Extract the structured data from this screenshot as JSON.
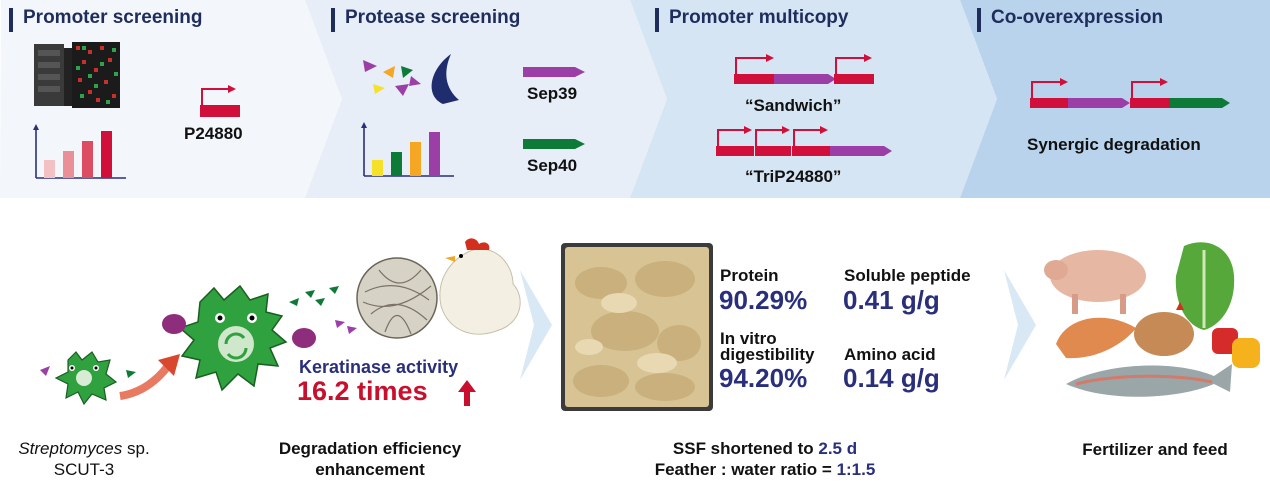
{
  "steps": [
    {
      "title": "Promoter screening"
    },
    {
      "title": "Protease screening"
    },
    {
      "title": "Promoter multicopy"
    },
    {
      "title": "Co-overexpression"
    }
  ],
  "promoter": {
    "name": "P24880"
  },
  "proteases": {
    "sep39": "Sep39",
    "sep40": "Sep40"
  },
  "multicopy": {
    "sandwich": "“Sandwich”",
    "trip": "“TriP24880”"
  },
  "coexp": {
    "label": "Synergic degradation"
  },
  "strain": {
    "genus": "Streptomyces",
    "rest": " sp.",
    "id": "SCUT-3"
  },
  "enhancement": {
    "caption_line1": "Degradation efficiency",
    "caption_line2": "enhancement",
    "activity_label": "Keratinase activity",
    "activity_value": "16.2 times"
  },
  "results": {
    "protein_label": "Protein",
    "protein_value": "90.29%",
    "peptide_label": "Soluble peptide",
    "peptide_value": "0.41 g/g",
    "digest_label_1": "In vitro",
    "digest_label_2": "digestibility",
    "digest_value": "94.20%",
    "amino_label": "Amino acid",
    "amino_value": "0.14 g/g"
  },
  "ssf": {
    "line1_prefix": "SSF shortened to ",
    "line1_value": "2.5 d",
    "line2_prefix": "Feather : water ratio = ",
    "line2_value": "1:1.5"
  },
  "application": {
    "label": "Fertilizer and feed"
  },
  "colors": {
    "panel1": "#f3f6fb",
    "panel2": "#e7eef8",
    "panel3": "#d6e5f3",
    "panel4": "#b9d3ec",
    "navy": "#1f2d5c",
    "crimson": "#d0103a",
    "purple": "#9b3fa6",
    "green": "#0e7a38"
  }
}
